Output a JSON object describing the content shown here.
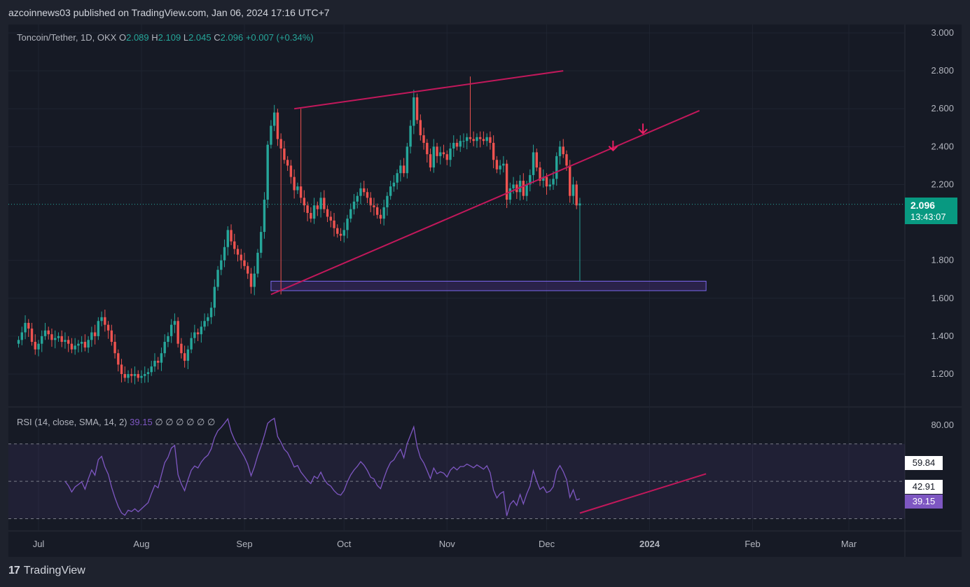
{
  "header": {
    "published": "azcoinnews03 published on TradingView.com, Jan 06, 2024 17:16 UTC+7"
  },
  "legend": {
    "symbol": "Toncoin/Tether, 1D, OKX",
    "o_label": "O",
    "o": "2.089",
    "h_label": "H",
    "h": "2.109",
    "l_label": "L",
    "l": "2.045",
    "c_label": "C",
    "c": "2.096",
    "change": "+0.007 (+0.34%)"
  },
  "price_tag": {
    "price": "2.096",
    "countdown": "13:43:07"
  },
  "rsi_legend": {
    "label": "RSI (14, close, SMA, 14, 2)",
    "value": "39.15",
    "extras": "∅ ∅ ∅ ∅ ∅ ∅"
  },
  "rsi_tags": {
    "upper_band": "59.84",
    "sma": "42.91",
    "rsi": "39.15"
  },
  "footer": {
    "brand": "TradingView",
    "logo": "17"
  },
  "colors": {
    "bull": "#26a69a",
    "bear": "#ef5350",
    "trendline": "#c2185b",
    "rsi": "#7e57c2",
    "zone": "#7b68ee",
    "arrow": "#e91e63"
  },
  "chart_data": {
    "type": "candlestick",
    "symbol": "Toncoin/Tether",
    "timeframe": "1D",
    "exchange": "OKX",
    "y_axis": {
      "ticks": [
        "3.000",
        "2.800",
        "2.600",
        "2.400",
        "2.200",
        "1.800",
        "1.600",
        "1.400",
        "1.200"
      ],
      "ylim": [
        1.05,
        3.05
      ]
    },
    "x_axis": {
      "ticks": [
        "Jul",
        "Aug",
        "Sep",
        "Oct",
        "Nov",
        "Dec",
        "2024",
        "Feb",
        "Mar"
      ]
    },
    "close_series_approx": {
      "start": "2023-06-25",
      "values": [
        1.38,
        1.42,
        1.47,
        1.44,
        1.37,
        1.33,
        1.36,
        1.4,
        1.43,
        1.41,
        1.38,
        1.39,
        1.4,
        1.37,
        1.38,
        1.36,
        1.33,
        1.35,
        1.36,
        1.37,
        1.34,
        1.38,
        1.42,
        1.4,
        1.48,
        1.5,
        1.46,
        1.43,
        1.37,
        1.31,
        1.25,
        1.2,
        1.18,
        1.2,
        1.19,
        1.2,
        1.18,
        1.19,
        1.2,
        1.21,
        1.24,
        1.27,
        1.26,
        1.31,
        1.37,
        1.4,
        1.46,
        1.48,
        1.36,
        1.31,
        1.27,
        1.33,
        1.39,
        1.42,
        1.41,
        1.45,
        1.48,
        1.5,
        1.55,
        1.66,
        1.75,
        1.8,
        1.87,
        1.96,
        1.9,
        1.86,
        1.83,
        1.8,
        1.77,
        1.73,
        1.66,
        1.73,
        1.84,
        1.95,
        2.12,
        2.41,
        2.51,
        2.58,
        2.44,
        2.39,
        2.33,
        2.3,
        2.24,
        2.17,
        2.19,
        2.13,
        2.09,
        2.05,
        2.02,
        2.09,
        2.07,
        2.13,
        2.07,
        2.03,
        2.01,
        1.97,
        1.94,
        1.93,
        1.96,
        2.02,
        2.07,
        2.11,
        2.14,
        2.18,
        2.16,
        2.13,
        2.09,
        2.08,
        2.04,
        2.02,
        2.08,
        2.14,
        2.19,
        2.21,
        2.26,
        2.3,
        2.26,
        2.4,
        2.51,
        2.66,
        2.54,
        2.46,
        2.42,
        2.36,
        2.29,
        2.4,
        2.35,
        2.37,
        2.36,
        2.33,
        2.39,
        2.42,
        2.4,
        2.43,
        2.43,
        2.45,
        2.44,
        2.43,
        2.45,
        2.44,
        2.43,
        2.45,
        2.42,
        2.33,
        2.28,
        2.3,
        2.31,
        2.12,
        2.18,
        2.2,
        2.16,
        2.22,
        2.14,
        2.2,
        2.25,
        2.37,
        2.29,
        2.22,
        2.24,
        2.19,
        2.2,
        2.23,
        2.35,
        2.4,
        2.36,
        2.3,
        2.14,
        2.2,
        2.09,
        2.1
      ]
    },
    "support_zone": {
      "low": 1.64,
      "high": 1.69
    },
    "rsi": {
      "length": 14,
      "source": "close",
      "ma": "SMA",
      "ma_length": 14,
      "last": 39.15,
      "bands": [
        70,
        50,
        30
      ]
    },
    "annotations": [
      "upper trendline",
      "rising lower trendline",
      "support zone",
      "two down arrows",
      "rising RSI trendline"
    ]
  }
}
